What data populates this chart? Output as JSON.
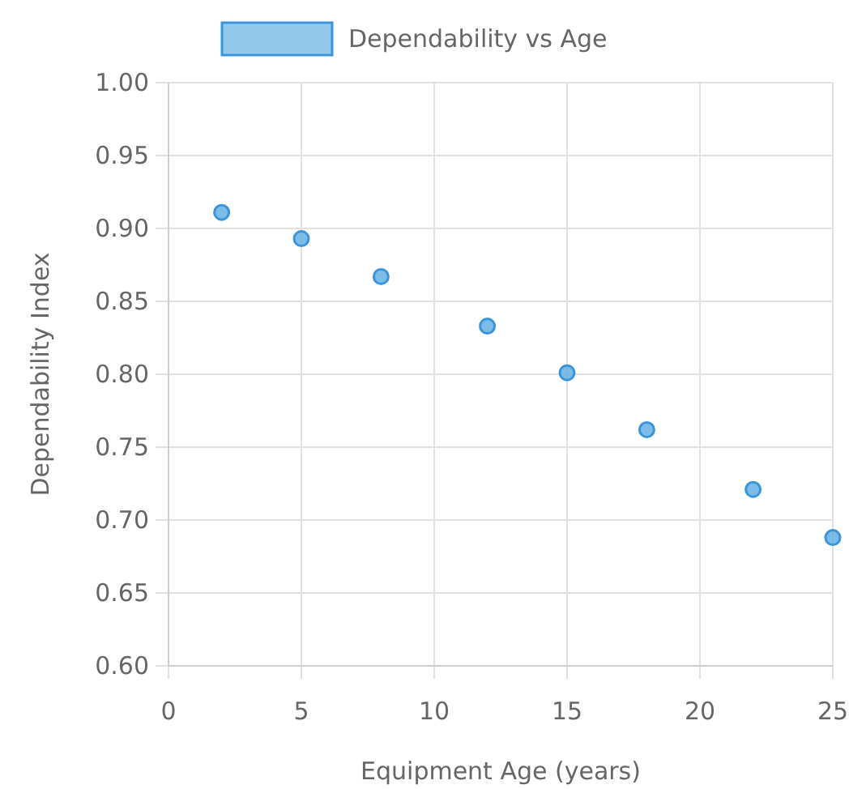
{
  "chart_data": {
    "type": "scatter",
    "xlabel": "Equipment Age (years)",
    "ylabel": "Dependability Index",
    "x": [
      2,
      5,
      8,
      12,
      15,
      18,
      22,
      25
    ],
    "series": [
      {
        "name": "Dependability vs Age",
        "color": "#64b0e4",
        "values": [
          0.911,
          0.893,
          0.867,
          0.833,
          0.801,
          0.762,
          0.721,
          0.688
        ]
      }
    ],
    "xlim": [
      0,
      25
    ],
    "xticks": [
      0,
      5,
      10,
      15,
      20,
      25
    ],
    "ylim": [
      0.6,
      1.0
    ],
    "yticks": [
      {
        "value": 0.6,
        "label": "0.60"
      },
      {
        "value": 0.65,
        "label": "0.65"
      },
      {
        "value": 0.7,
        "label": "0.70"
      },
      {
        "value": 0.75,
        "label": "0.75"
      },
      {
        "value": 0.8,
        "label": "0.80"
      },
      {
        "value": 0.85,
        "label": "0.85"
      },
      {
        "value": 0.9,
        "label": "0.90"
      },
      {
        "value": 0.95,
        "label": "0.95"
      },
      {
        "value": 1.0,
        "label": "1.00"
      }
    ],
    "grid": true,
    "legend": "top",
    "marker": "circle"
  }
}
